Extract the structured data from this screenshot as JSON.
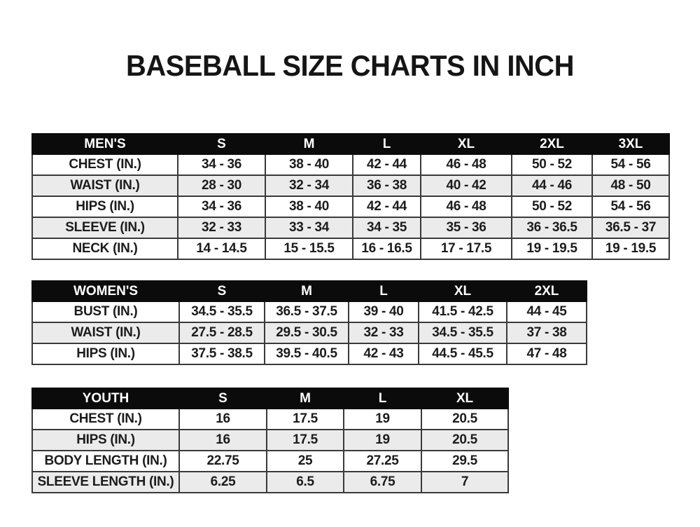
{
  "title": "BASEBALL SIZE CHARTS IN INCH",
  "colors": {
    "header_bg": "#0b0b0b",
    "header_text": "#ffffff",
    "stripe": "#ebebeb",
    "border": "#3a3a3a",
    "text": "#1c1c1c",
    "background": "#ffffff"
  },
  "tables": [
    {
      "name": "MEN'S",
      "columns": [
        "S",
        "M",
        "L",
        "XL",
        "2XL",
        "3XL"
      ],
      "rows": [
        {
          "label": "CHEST (IN.)",
          "values": [
            "34 - 36",
            "38 - 40",
            "42 - 44",
            "46 - 48",
            "50 - 52",
            "54 - 56"
          ]
        },
        {
          "label": "WAIST (IN.)",
          "values": [
            "28 - 30",
            "32 - 34",
            "36 - 38",
            "40 - 42",
            "44 - 46",
            "48 - 50"
          ]
        },
        {
          "label": "HIPS (IN.)",
          "values": [
            "34 - 36",
            "38 - 40",
            "42 - 44",
            "46 - 48",
            "50 - 52",
            "54 - 56"
          ]
        },
        {
          "label": "SLEEVE (IN.)",
          "values": [
            "32 - 33",
            "33 - 34",
            "34 - 35",
            "35 - 36",
            "36 - 36.5",
            "36.5 - 37"
          ]
        },
        {
          "label": "NECK (IN.)",
          "values": [
            "14 - 14.5",
            "15 - 15.5",
            "16 - 16.5",
            "17 - 17.5",
            "19 - 19.5",
            "19 - 19.5"
          ]
        }
      ]
    },
    {
      "name": "WOMEN'S",
      "columns": [
        "S",
        "M",
        "L",
        "XL",
        "2XL"
      ],
      "rows": [
        {
          "label": "BUST (IN.)",
          "values": [
            "34.5 - 35.5",
            "36.5 - 37.5",
            "39 - 40",
            "41.5 - 42.5",
            "44 - 45"
          ]
        },
        {
          "label": "WAIST (IN.)",
          "values": [
            "27.5 - 28.5",
            "29.5 - 30.5",
            "32 - 33",
            "34.5 - 35.5",
            "37 - 38"
          ]
        },
        {
          "label": "HIPS (IN.)",
          "values": [
            "37.5 - 38.5",
            "39.5 - 40.5",
            "42 - 43",
            "44.5 - 45.5",
            "47 - 48"
          ]
        }
      ]
    },
    {
      "name": "YOUTH",
      "columns": [
        "S",
        "M",
        "L",
        "XL"
      ],
      "rows": [
        {
          "label": "CHEST (IN.)",
          "values": [
            "16",
            "17.5",
            "19",
            "20.5"
          ]
        },
        {
          "label": "HIPS (IN.)",
          "values": [
            "16",
            "17.5",
            "19",
            "20.5"
          ]
        },
        {
          "label": "BODY LENGTH (IN.)",
          "values": [
            "22.75",
            "25",
            "27.25",
            "29.5"
          ]
        },
        {
          "label": "SLEEVE LENGTH (IN.)",
          "values": [
            "6.25",
            "6.5",
            "6.75",
            "7"
          ]
        }
      ]
    }
  ]
}
